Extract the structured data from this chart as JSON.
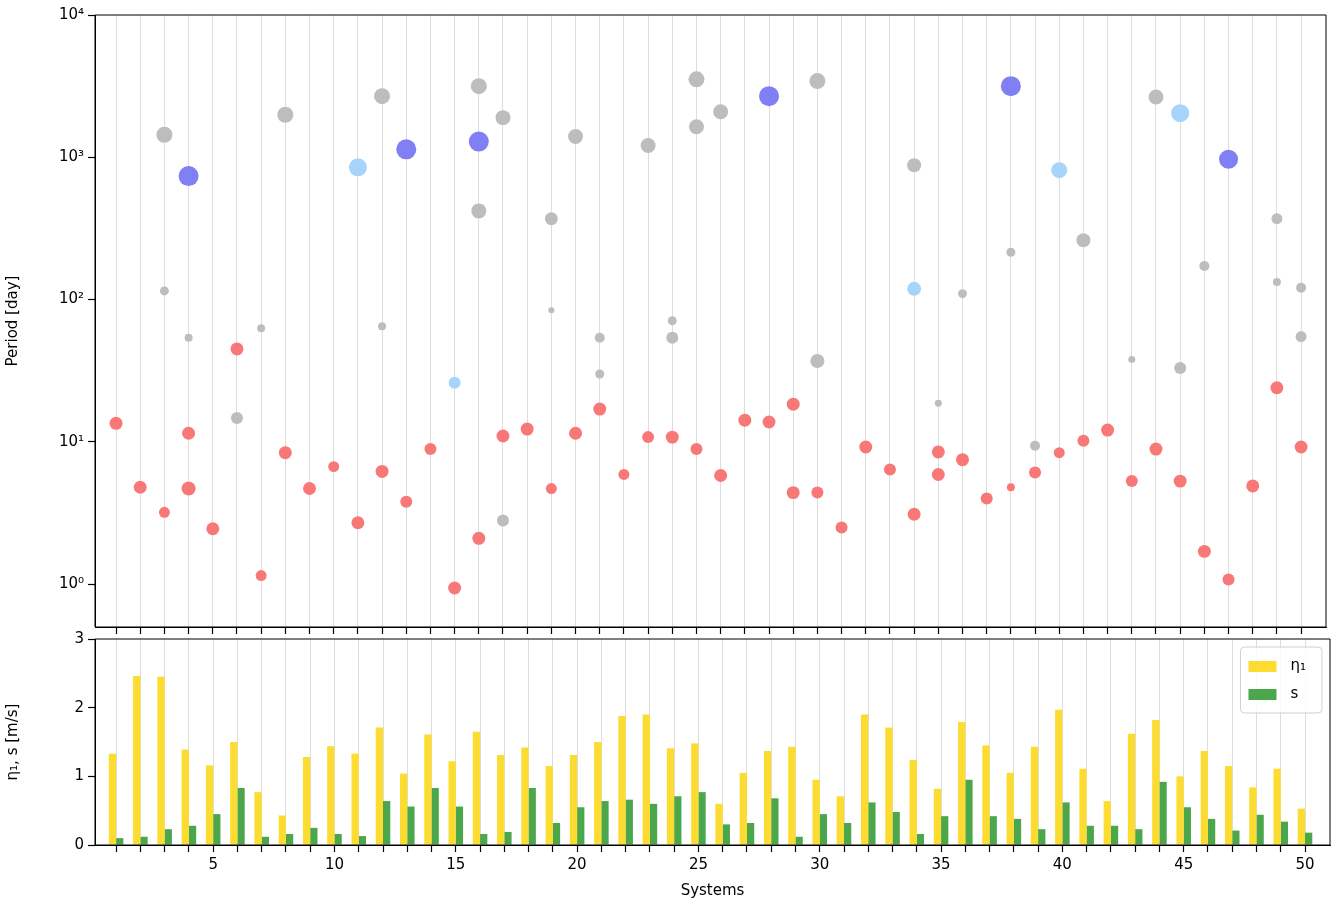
{
  "chart_data": [
    {
      "type": "bubble",
      "ylabel": "Period [day]",
      "log": "y",
      "xlim": [
        0.13,
        51.03
      ],
      "ylim": [
        0.5,
        10000
      ],
      "yticks": [
        {
          "value": 1,
          "label": "10⁰"
        },
        {
          "value": 10,
          "label": "10¹"
        },
        {
          "value": 100,
          "label": "10²"
        },
        {
          "value": 1000,
          "label": "10³"
        },
        {
          "value": 10000,
          "label": "10⁴"
        }
      ],
      "xticks": [
        {
          "value": 1,
          "label": null
        },
        {
          "value": 2,
          "label": null
        },
        {
          "value": 3,
          "label": null
        },
        {
          "value": 4,
          "label": null
        },
        5,
        {
          "value": 6,
          "label": null
        },
        {
          "value": 7,
          "label": null
        },
        {
          "value": 8,
          "label": null
        },
        {
          "value": 9,
          "label": null
        },
        10,
        {
          "value": 11,
          "label": null
        },
        {
          "value": 12,
          "label": null
        },
        {
          "value": 13,
          "label": null
        },
        {
          "value": 14,
          "label": null
        },
        15,
        {
          "value": 16,
          "label": null
        },
        {
          "value": 17,
          "label": null
        },
        {
          "value": 18,
          "label": null
        },
        {
          "value": 19,
          "label": null
        },
        20,
        {
          "value": 21,
          "label": null
        },
        {
          "value": 22,
          "label": null
        },
        {
          "value": 23,
          "label": null
        },
        {
          "value": 24,
          "label": null
        },
        25,
        {
          "value": 26,
          "label": null
        },
        {
          "value": 27,
          "label": null
        },
        {
          "value": 28,
          "label": null
        },
        {
          "value": 29,
          "label": null
        },
        30,
        {
          "value": 31,
          "label": null
        },
        {
          "value": 32,
          "label": null
        },
        {
          "value": 33,
          "label": null
        },
        {
          "value": 34,
          "label": null
        },
        35,
        {
          "value": 36,
          "label": null
        },
        {
          "value": 37,
          "label": null
        },
        {
          "value": 38,
          "label": null
        },
        {
          "value": 39,
          "label": null
        },
        40,
        {
          "value": 41,
          "label": null
        },
        {
          "value": 42,
          "label": null
        },
        {
          "value": 43,
          "label": null
        },
        {
          "value": 44,
          "label": null
        },
        45,
        {
          "value": 46,
          "label": null
        },
        {
          "value": 47,
          "label": null
        },
        {
          "value": 48,
          "label": null
        },
        {
          "value": 49,
          "label": null
        },
        50
      ],
      "grid": "x",
      "tick_labels": "y",
      "series": [
        {
          "color": "#f87878",
          "x": [
            1,
            2,
            3,
            4,
            4,
            5,
            6,
            7,
            8,
            9,
            10,
            11,
            12,
            13,
            14,
            15,
            16,
            17,
            18,
            19,
            20,
            21,
            22,
            23,
            24,
            25,
            26,
            27,
            28,
            29,
            29,
            30,
            31,
            32,
            33,
            34,
            35,
            35,
            36,
            37,
            38,
            39,
            40,
            41,
            42,
            43,
            44,
            45,
            46,
            47,
            48,
            49,
            50
          ],
          "values": [
            13.5,
            4.8,
            3.2,
            11.5,
            4.7,
            2.45,
            45,
            1.15,
            8.4,
            4.7,
            6.7,
            2.7,
            6.2,
            3.8,
            8.9,
            0.94,
            2.1,
            11,
            12.3,
            4.7,
            11.5,
            17,
            5.9,
            10.8,
            10.8,
            8.9,
            5.8,
            14.2,
            13.8,
            18.4,
            4.4,
            4.4,
            2.5,
            9.2,
            6.4,
            3.1,
            8.5,
            5.9,
            7.5,
            4.0,
            4.8,
            6.1,
            8.4,
            10.2,
            12.1,
            5.3,
            8.9,
            5.3,
            1.7,
            1.08,
            4.9,
            24,
            9.2
          ],
          "sizes": [
            0.42,
            0.42,
            0.3,
            0.42,
            0.49,
            0.42,
            0.42,
            0.3,
            0.42,
            0.42,
            0.3,
            0.42,
            0.42,
            0.36,
            0.36,
            0.42,
            0.42,
            0.42,
            0.42,
            0.3,
            0.42,
            0.42,
            0.3,
            0.36,
            0.42,
            0.36,
            0.42,
            0.42,
            0.42,
            0.42,
            0.42,
            0.36,
            0.36,
            0.42,
            0.36,
            0.42,
            0.42,
            0.42,
            0.42,
            0.36,
            0.16,
            0.36,
            0.3,
            0.36,
            0.42,
            0.36,
            0.42,
            0.42,
            0.42,
            0.36,
            0.42,
            0.42,
            0.42
          ]
        },
        {
          "color": "#bdbdbd",
          "x": [
            3,
            3,
            4,
            6,
            7,
            8,
            12,
            12,
            16,
            16,
            17,
            17,
            19,
            19,
            20,
            21,
            21,
            23,
            24,
            24,
            25,
            25,
            26,
            30,
            30,
            34,
            35,
            36,
            38,
            39,
            41,
            43,
            44,
            45,
            46,
            49,
            49,
            50,
            50
          ],
          "values": [
            1440,
            115,
            54,
            14.7,
            63,
            1990,
            2690,
            65,
            3160,
            420,
            1900,
            2.8,
            370,
            84,
            1400,
            54,
            30,
            1210,
            71,
            54,
            3530,
            1640,
            2090,
            3430,
            37,
            880,
            18.7,
            110,
            215,
            9.4,
            261,
            38,
            2650,
            33,
            172,
            370,
            133,
            121,
            55
          ],
          "sizes": [
            0.64,
            0.2,
            0.16,
            0.36,
            0.16,
            0.64,
            0.64,
            0.16,
            0.64,
            0.56,
            0.56,
            0.36,
            0.42,
            0.09,
            0.56,
            0.25,
            0.2,
            0.56,
            0.2,
            0.36,
            0.64,
            0.56,
            0.56,
            0.64,
            0.49,
            0.49,
            0.12,
            0.2,
            0.2,
            0.25,
            0.49,
            0.12,
            0.56,
            0.36,
            0.25,
            0.3,
            0.16,
            0.25,
            0.3
          ]
        },
        {
          "color": "#8080f4",
          "x": [
            4,
            13,
            16,
            28,
            38,
            47
          ],
          "values": [
            738,
            1137,
            1290,
            2690,
            3160,
            970
          ],
          "sizes": [
            1,
            1,
            1,
            1,
            1,
            0.9
          ]
        },
        {
          "color": "#a6d4fb",
          "x": [
            11,
            15,
            34,
            40,
            45
          ],
          "values": [
            850,
            26,
            119,
            812,
            2040
          ],
          "sizes": [
            0.81,
            0.36,
            0.49,
            0.64,
            0.81
          ]
        }
      ]
    },
    {
      "type": "bar",
      "xlabel": "Systems",
      "ylabel": "η₁, s [m/s]",
      "xlim": [
        0.13,
        51.03
      ],
      "ylim": [
        0,
        3
      ],
      "yticks": [
        0,
        1,
        2,
        3
      ],
      "xticks": [
        {
          "value": 1,
          "label": null
        },
        {
          "value": 2,
          "label": null
        },
        {
          "value": 3,
          "label": null
        },
        {
          "value": 4,
          "label": null
        },
        5,
        {
          "value": 6,
          "label": null
        },
        {
          "value": 7,
          "label": null
        },
        {
          "value": 8,
          "label": null
        },
        {
          "value": 9,
          "label": null
        },
        10,
        {
          "value": 11,
          "label": null
        },
        {
          "value": 12,
          "label": null
        },
        {
          "value": 13,
          "label": null
        },
        {
          "value": 14,
          "label": null
        },
        15,
        {
          "value": 16,
          "label": null
        },
        {
          "value": 17,
          "label": null
        },
        {
          "value": 18,
          "label": null
        },
        {
          "value": 19,
          "label": null
        },
        20,
        {
          "value": 21,
          "label": null
        },
        {
          "value": 22,
          "label": null
        },
        {
          "value": 23,
          "label": null
        },
        {
          "value": 24,
          "label": null
        },
        25,
        {
          "value": 26,
          "label": null
        },
        {
          "value": 27,
          "label": null
        },
        {
          "value": 28,
          "label": null
        },
        {
          "value": 29,
          "label": null
        },
        30,
        {
          "value": 31,
          "label": null
        },
        {
          "value": 32,
          "label": null
        },
        {
          "value": 33,
          "label": null
        },
        {
          "value": 34,
          "label": null
        },
        35,
        {
          "value": 36,
          "label": null
        },
        {
          "value": 37,
          "label": null
        },
        {
          "value": 38,
          "label": null
        },
        {
          "value": 39,
          "label": null
        },
        40,
        {
          "value": 41,
          "label": null
        },
        {
          "value": 42,
          "label": null
        },
        {
          "value": 43,
          "label": null
        },
        {
          "value": 44,
          "label": null
        },
        45,
        {
          "value": 46,
          "label": null
        },
        {
          "value": 47,
          "label": null
        },
        {
          "value": 48,
          "label": null
        },
        {
          "value": 49,
          "label": null
        },
        50
      ],
      "x": [
        1,
        2,
        3,
        4,
        5,
        6,
        7,
        8,
        9,
        10,
        11,
        12,
        13,
        14,
        15,
        16,
        17,
        18,
        19,
        20,
        21,
        22,
        23,
        24,
        25,
        26,
        27,
        28,
        29,
        30,
        31,
        32,
        33,
        34,
        35,
        36,
        37,
        38,
        39,
        40,
        41,
        42,
        43,
        44,
        45,
        46,
        47,
        48,
        49,
        50
      ],
      "grid": "x",
      "legend": "top right",
      "series": [
        {
          "name": "η₁",
          "color": "#fddc32",
          "values": [
            1.33,
            2.46,
            2.45,
            1.39,
            1.16,
            1.5,
            0.77,
            0.43,
            1.28,
            1.44,
            1.33,
            1.71,
            1.04,
            1.61,
            1.22,
            1.65,
            1.31,
            1.42,
            1.15,
            1.31,
            1.5,
            1.88,
            1.9,
            1.41,
            1.48,
            0.6,
            1.05,
            1.37,
            1.43,
            0.95,
            0.71,
            1.9,
            1.71,
            1.24,
            0.82,
            1.79,
            1.45,
            1.05,
            1.43,
            1.97,
            1.11,
            0.64,
            1.62,
            1.82,
            1.0,
            1.37,
            1.15,
            0.84,
            1.11,
            0.53
          ]
        },
        {
          "name": "s",
          "color": "#4ca64c",
          "values": [
            0.1,
            0.12,
            0.23,
            0.28,
            0.45,
            0.83,
            0.12,
            0.16,
            0.25,
            0.16,
            0.13,
            0.64,
            0.56,
            0.83,
            0.56,
            0.16,
            0.19,
            0.83,
            0.32,
            0.55,
            0.64,
            0.66,
            0.6,
            0.71,
            0.77,
            0.3,
            0.32,
            0.68,
            0.12,
            0.45,
            0.32,
            0.62,
            0.48,
            0.16,
            0.42,
            0.95,
            0.42,
            0.38,
            0.23,
            0.62,
            0.28,
            0.28,
            0.23,
            0.92,
            0.55,
            0.38,
            0.21,
            0.44,
            0.34,
            0.18
          ]
        }
      ]
    }
  ]
}
